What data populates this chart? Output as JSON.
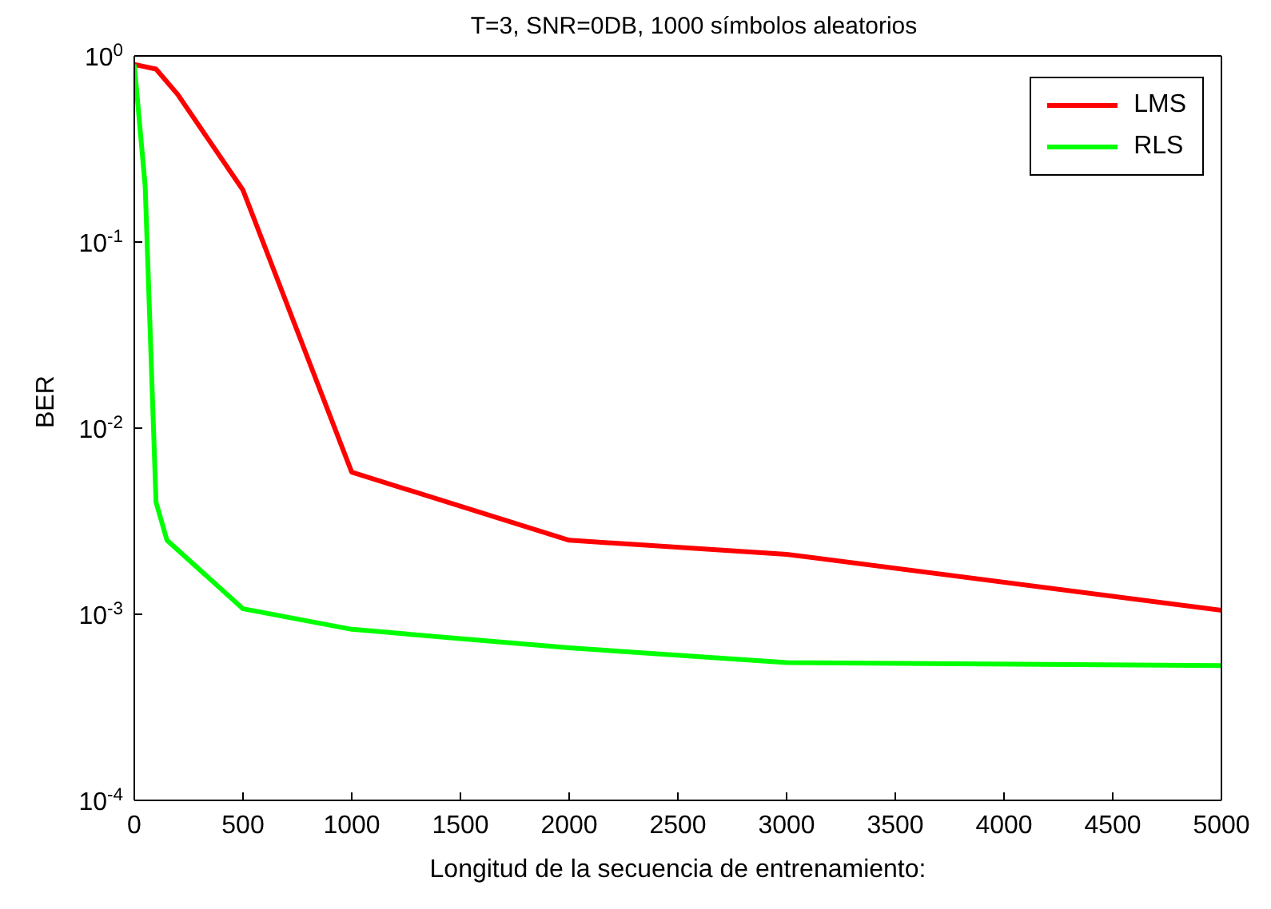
{
  "chart_data": {
    "type": "line",
    "title": "T=3, SNR=0DB, 1000 símbolos aleatorios",
    "xlabel": "Longitud de la secuencia de entrenamiento:",
    "ylabel": "BER",
    "series": [
      {
        "name": "LMS",
        "color": "#ff0000",
        "x": [
          0,
          100,
          200,
          500,
          1000,
          2000,
          3000,
          5000
        ],
        "values": [
          0.9,
          0.85,
          0.62,
          0.19,
          0.0058,
          0.0025,
          0.0021,
          0.00105
        ]
      },
      {
        "name": "RLS",
        "color": "#00ff00",
        "x": [
          0,
          50,
          100,
          150,
          500,
          1000,
          2000,
          3000,
          5000
        ],
        "values": [
          0.9,
          0.2,
          0.004,
          0.0025,
          0.00107,
          0.00083,
          0.00066,
          0.00055,
          0.00053
        ]
      }
    ],
    "log": "y",
    "xlim": [
      0,
      5000
    ],
    "xticks": [
      0,
      500,
      1000,
      1500,
      2000,
      2500,
      3000,
      3500,
      4000,
      4500,
      5000
    ],
    "ylim": [
      0.0001,
      1
    ],
    "yticks": [
      {
        "value": 0.0001,
        "label": "10$^{-4}$"
      },
      {
        "value": 0.001,
        "label": "10$^{-3}$"
      },
      {
        "value": 0.01,
        "label": "10$^{-2}$"
      },
      {
        "value": 0.1,
        "label": "10$^{-1}$"
      },
      {
        "value": 1,
        "label": "10$^{0}$"
      }
    ],
    "legend": "top right",
    "grid": false,
    "marker": "none",
    "line_style": "solid"
  }
}
